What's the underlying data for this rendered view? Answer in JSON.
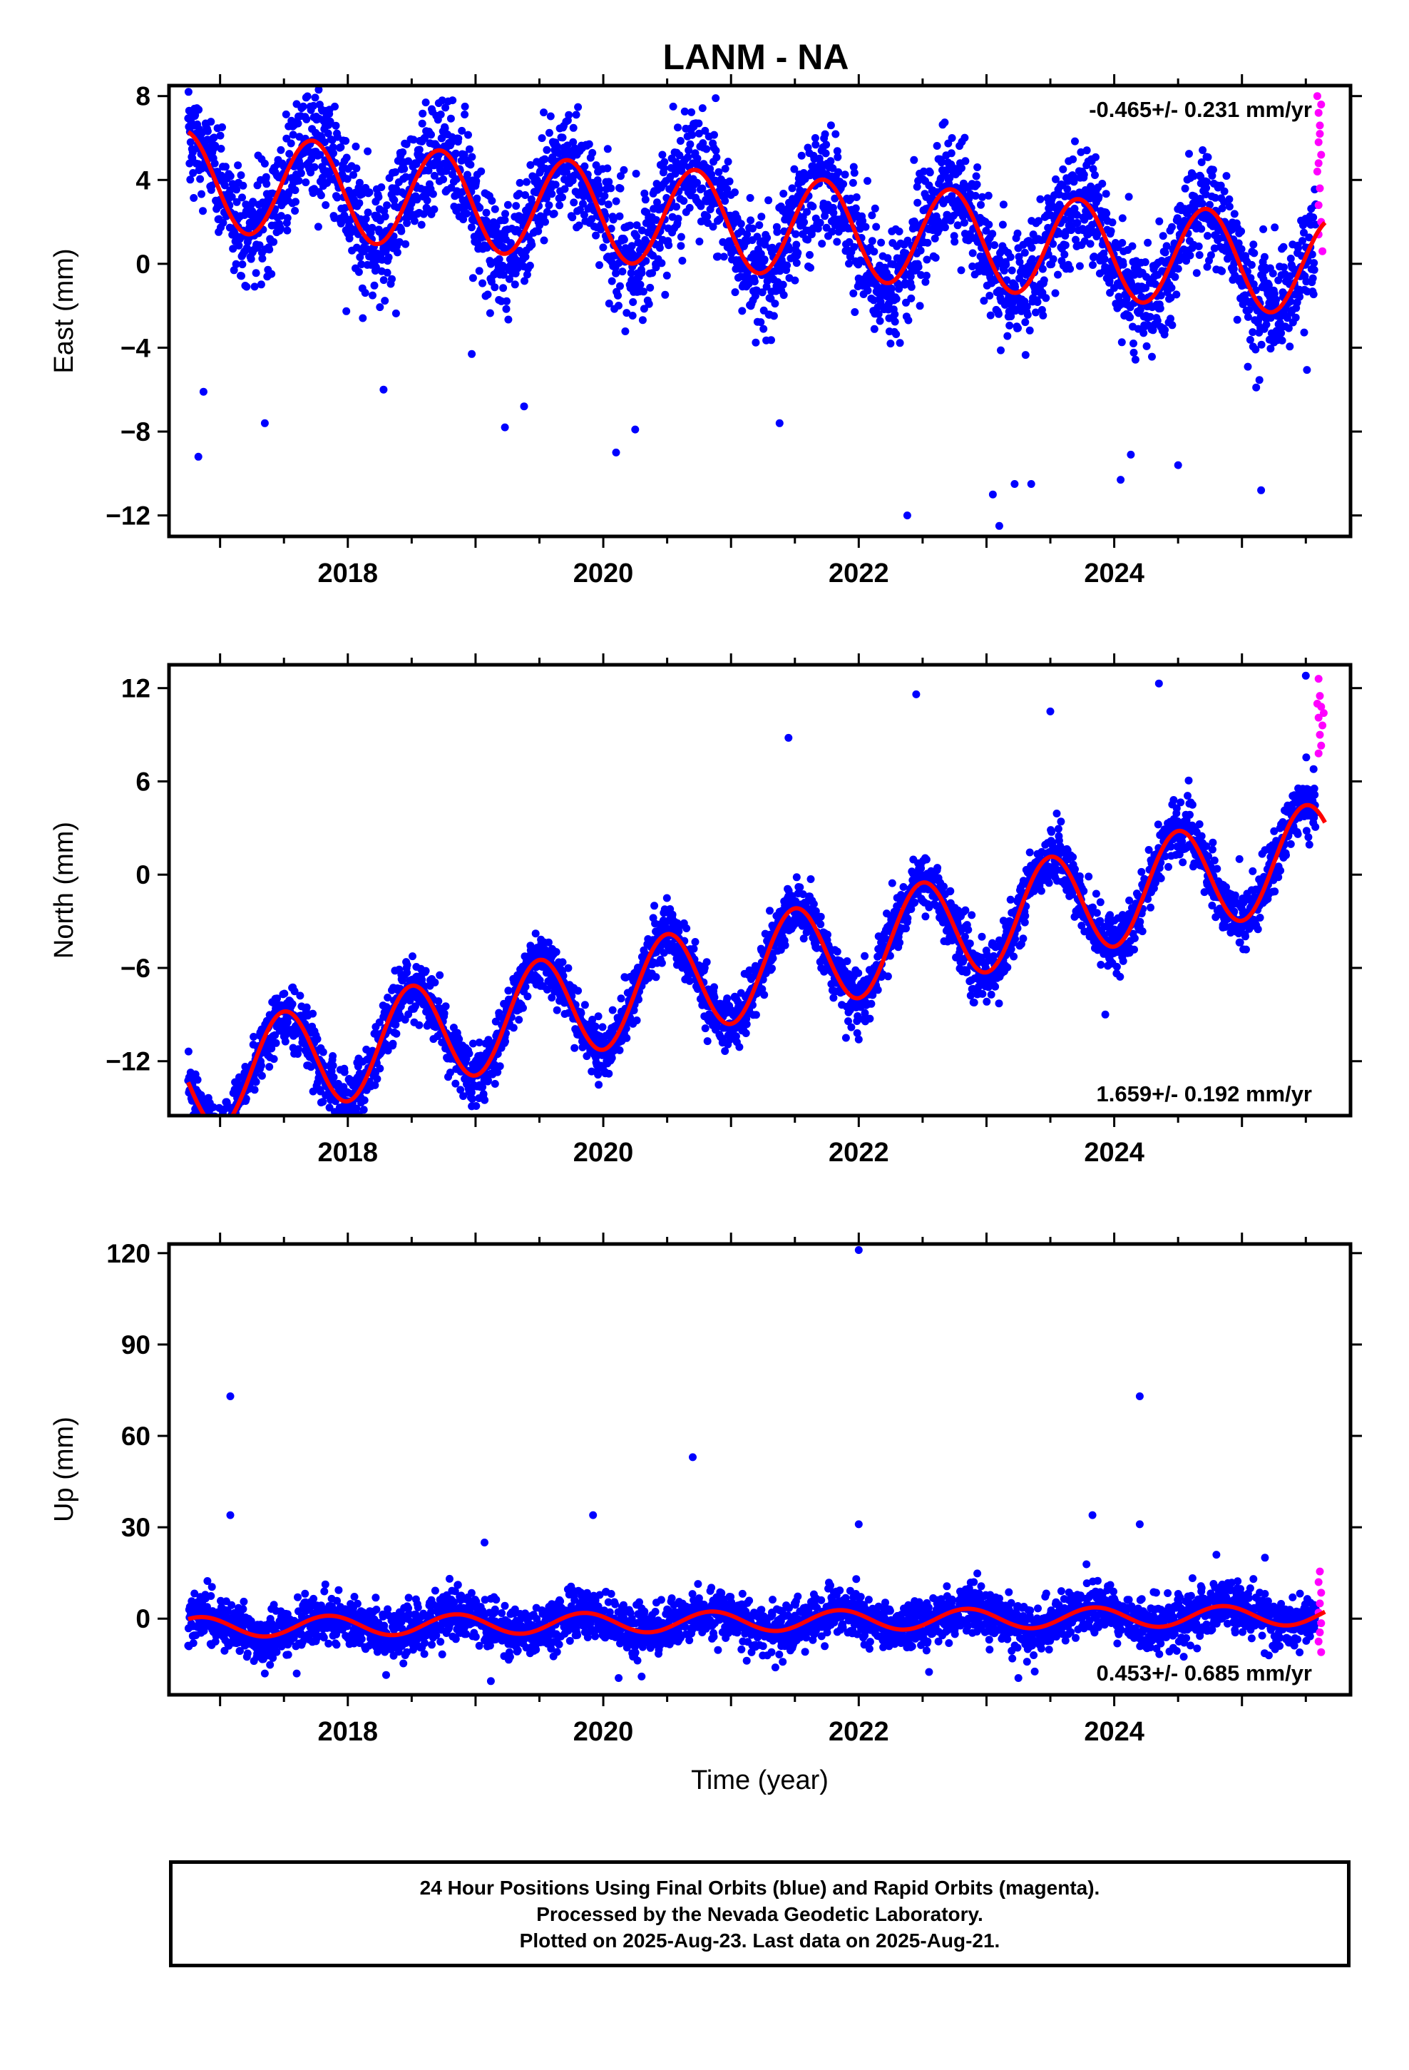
{
  "title": "LANM - NA",
  "chart_data": [
    {
      "type": "scatter",
      "panel": "east",
      "ylabel": "East (mm)",
      "xlabel": "",
      "xlim": [
        2016.6,
        2025.85
      ],
      "ylim": [
        -13,
        8.5
      ],
      "yticks": [
        -12,
        -8,
        -4,
        0,
        4,
        8
      ],
      "ytick_labels": [
        "−12",
        "−8",
        "−4",
        "0",
        "4",
        "8"
      ],
      "xticks": [
        2018,
        2020,
        2022,
        2024
      ],
      "xtick_labels": [
        "2018",
        "2020",
        "2022",
        "2024"
      ],
      "rate_label": "-0.465+/- 0.231 mm/yr",
      "rate_label_position": "top-right",
      "fit": {
        "start": 2016.75,
        "end": 2025.65,
        "intercept": 2.0,
        "slope": -0.465,
        "amplitude": 2.35,
        "phase_peak": 0.72
      },
      "noise": 1.35,
      "series": [
        {
          "name": "Final Orbits (blue)",
          "color": "#0000ff",
          "x_range": [
            2016.75,
            2025.58
          ]
        },
        {
          "name": "Rapid Orbits (magenta)",
          "color": "#ff00ff",
          "x_range": [
            2025.58,
            2025.64
          ]
        },
        {
          "name": "fit",
          "color": "#ff0000"
        }
      ],
      "outliers": [
        [
          2016.83,
          -9.2
        ],
        [
          2016.87,
          -6.1
        ],
        [
          2017.35,
          -7.6
        ],
        [
          2018.28,
          -6.0
        ],
        [
          2018.97,
          -4.3
        ],
        [
          2019.23,
          -7.8
        ],
        [
          2019.38,
          -6.8
        ],
        [
          2020.1,
          -9.0
        ],
        [
          2020.25,
          -7.9
        ],
        [
          2021.38,
          -7.6
        ],
        [
          2022.38,
          -12.0
        ],
        [
          2023.05,
          -11.0
        ],
        [
          2023.1,
          -12.5
        ],
        [
          2023.22,
          -10.5
        ],
        [
          2023.35,
          -10.5
        ],
        [
          2024.05,
          -10.3
        ],
        [
          2024.13,
          -9.1
        ],
        [
          2024.5,
          -9.6
        ],
        [
          2025.15,
          -10.8
        ],
        [
          2017.8,
          7.3
        ],
        [
          2018.82,
          7.8
        ],
        [
          2019.73,
          7.1
        ],
        [
          2020.88,
          7.9
        ],
        [
          2020.68,
          5.7
        ],
        [
          2022.73,
          6.0
        ]
      ],
      "rapid_points": [
        [
          2025.59,
          8.0
        ],
        [
          2025.6,
          7.2
        ],
        [
          2025.61,
          6.6
        ],
        [
          2025.6,
          5.8
        ],
        [
          2025.62,
          5.2
        ],
        [
          2025.59,
          4.4
        ],
        [
          2025.61,
          3.6
        ],
        [
          2025.6,
          2.8
        ],
        [
          2025.62,
          2.0
        ],
        [
          2025.6,
          1.4
        ],
        [
          2025.63,
          0.6
        ],
        [
          2025.61,
          6.2
        ],
        [
          2025.62,
          7.6
        ],
        [
          2025.6,
          4.8
        ]
      ]
    },
    {
      "type": "scatter",
      "panel": "north",
      "ylabel": "North (mm)",
      "xlabel": "",
      "xlim": [
        2016.6,
        2025.85
      ],
      "ylim": [
        -15.5,
        13.5
      ],
      "yticks": [
        -12,
        -6,
        0,
        6,
        12
      ],
      "ytick_labels": [
        "−12",
        "−6",
        "0",
        "6",
        "12"
      ],
      "xticks": [
        2018,
        2020,
        2022,
        2024
      ],
      "xtick_labels": [
        "2018",
        "2020",
        "2022",
        "2024"
      ],
      "rate_label": "1.659+/- 0.192 mm/yr",
      "rate_label_position": "bottom-right",
      "fit": {
        "start": 2016.75,
        "end": 2025.65,
        "intercept": -6.3,
        "slope": 1.659,
        "amplitude": 3.3,
        "phase_peak": 0.5
      },
      "noise": 0.9,
      "series": [
        {
          "name": "Final Orbits (blue)",
          "color": "#0000ff",
          "x_range": [
            2016.75,
            2025.58
          ]
        },
        {
          "name": "Rapid Orbits (magenta)",
          "color": "#ff00ff",
          "x_range": [
            2025.58,
            2025.64
          ]
        },
        {
          "name": "fit",
          "color": "#ff0000"
        }
      ],
      "outliers": [
        [
          2018.35,
          -11.0
        ],
        [
          2018.52,
          -9.5
        ],
        [
          2018.95,
          -14.0
        ],
        [
          2018.97,
          -14.9
        ],
        [
          2021.9,
          -10.5
        ],
        [
          2023.15,
          -5.2
        ],
        [
          2023.93,
          -9.0
        ],
        [
          2024.85,
          -3.4
        ],
        [
          2024.98,
          1.0
        ],
        [
          2022.0,
          -10.6
        ],
        [
          2025.5,
          12.8
        ],
        [
          2024.35,
          12.3
        ],
        [
          2022.45,
          11.6
        ],
        [
          2023.5,
          10.5
        ],
        [
          2021.45,
          8.8
        ]
      ],
      "rapid_points": [
        [
          2025.6,
          12.6
        ],
        [
          2025.61,
          11.5
        ],
        [
          2025.62,
          10.8
        ],
        [
          2025.6,
          10.1
        ],
        [
          2025.63,
          9.6
        ],
        [
          2025.61,
          9.0
        ],
        [
          2025.62,
          8.3
        ],
        [
          2025.6,
          7.8
        ],
        [
          2025.64,
          10.4
        ],
        [
          2025.59,
          11.0
        ]
      ]
    },
    {
      "type": "scatter",
      "panel": "up",
      "ylabel": "Up (mm)",
      "xlabel": "Time (year)",
      "xlim": [
        2016.6,
        2025.85
      ],
      "ylim": [
        -25,
        123
      ],
      "yticks": [
        0,
        30,
        60,
        90,
        120
      ],
      "ytick_labels": [
        "0",
        "30",
        "60",
        "90",
        "120"
      ],
      "xticks": [
        2018,
        2020,
        2022,
        2024
      ],
      "xtick_labels": [
        "2018",
        "2020",
        "2022",
        "2024"
      ],
      "rate_label": "0.453+/- 0.685 mm/yr",
      "rate_label_position": "bottom-right",
      "fit": {
        "start": 2016.75,
        "end": 2025.65,
        "intercept": -0.9,
        "slope": 0.453,
        "amplitude": 3.3,
        "phase_peak": 0.85
      },
      "noise": 4.0,
      "series": [
        {
          "name": "Final Orbits (blue)",
          "color": "#0000ff",
          "x_range": [
            2016.75,
            2025.58
          ]
        },
        {
          "name": "Rapid Orbits (magenta)",
          "color": "#ff00ff",
          "x_range": [
            2025.58,
            2025.64
          ]
        },
        {
          "name": "fit",
          "color": "#ff0000"
        }
      ],
      "outliers": [
        [
          2017.08,
          73
        ],
        [
          2017.08,
          34
        ],
        [
          2019.07,
          25
        ],
        [
          2019.92,
          34
        ],
        [
          2020.7,
          53
        ],
        [
          2022.0,
          121
        ],
        [
          2022.0,
          31
        ],
        [
          2023.83,
          34
        ],
        [
          2024.2,
          73
        ],
        [
          2024.2,
          31
        ],
        [
          2025.18,
          20
        ],
        [
          2024.8,
          21
        ],
        [
          2019.12,
          -20.5
        ],
        [
          2020.12,
          -19.5
        ],
        [
          2020.3,
          -19.0
        ],
        [
          2017.35,
          -18
        ],
        [
          2017.6,
          -18
        ],
        [
          2018.3,
          -18.5
        ],
        [
          2022.55,
          -17.5
        ],
        [
          2023.25,
          -19.5
        ]
      ],
      "rapid_points": [
        [
          2025.61,
          15.5
        ],
        [
          2025.6,
          12.0
        ],
        [
          2025.62,
          8.5
        ],
        [
          2025.61,
          5.0
        ],
        [
          2025.6,
          2.0
        ],
        [
          2025.62,
          -1.5
        ],
        [
          2025.61,
          -4.5
        ],
        [
          2025.6,
          -7.5
        ],
        [
          2025.62,
          -11.0
        ]
      ]
    }
  ],
  "footer": {
    "line1": "24 Hour Positions Using Final Orbits (blue) and Rapid Orbits (magenta).",
    "line2": "Processed by the Nevada Geodetic Laboratory.",
    "line3": "Plotted on 2025-Aug-23. Last data on 2025-Aug-21."
  }
}
